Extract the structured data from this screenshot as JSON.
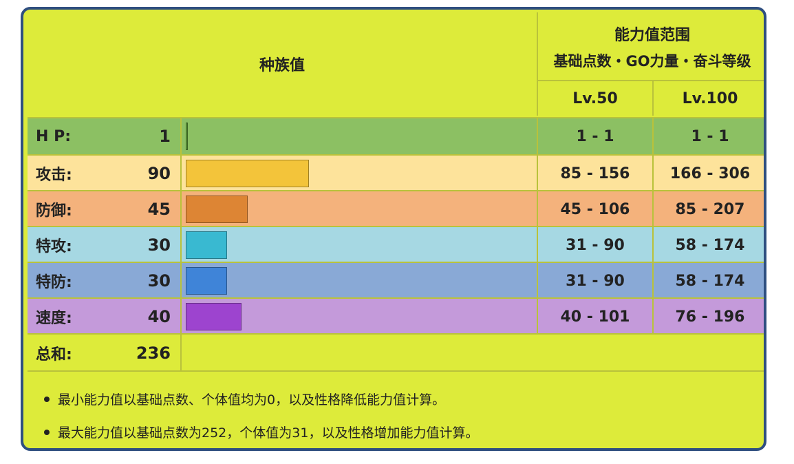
{
  "header": {
    "base_stats_label": "种族值",
    "range_title": "能力值范围",
    "range_subtitle": "基础点数・GO力量・奋斗等级",
    "lv50_label": "Lv.50",
    "lv100_label": "Lv.100"
  },
  "stats": [
    {
      "name": "H P:",
      "value": "1",
      "fraction": 0.0,
      "bar_color": "#5f9a3a",
      "row_color": "#8cc063",
      "lv50": "1 - 1",
      "lv100": "1 - 1"
    },
    {
      "name": "攻击:",
      "value": "90",
      "fraction": 0.355,
      "bar_color": "#f3c43a",
      "row_color": "#fde39b",
      "lv50": "85 - 156",
      "lv100": "166 - 306"
    },
    {
      "name": "防御:",
      "value": "45",
      "fraction": 0.178,
      "bar_color": "#dd8534",
      "row_color": "#f4b27c",
      "lv50": "45 - 106",
      "lv100": "85 - 207"
    },
    {
      "name": "特攻:",
      "value": "30",
      "fraction": 0.12,
      "bar_color": "#39b9d1",
      "row_color": "#a6d8e3",
      "lv50": "31 - 90",
      "lv100": "58 - 174"
    },
    {
      "name": "特防:",
      "value": "30",
      "fraction": 0.12,
      "bar_color": "#3f84d8",
      "row_color": "#89a9d6",
      "lv50": "31 - 90",
      "lv100": "58 - 174"
    },
    {
      "name": "速度:",
      "value": "40",
      "fraction": 0.16,
      "bar_color": "#9d44cf",
      "row_color": "#c49ada",
      "lv50": "40 - 101",
      "lv100": "76 - 196"
    }
  ],
  "total": {
    "name": "总和:",
    "value": "236"
  },
  "notes": [
    "最小能力值以基础点数、个体值均为0，以及性格降低能力值计算。",
    "最大能力值以基础点数为252，个体值为31，以及性格增加能力值计算。"
  ],
  "colors": {
    "background": "#ddeb3a",
    "border": "#2f4f80"
  }
}
